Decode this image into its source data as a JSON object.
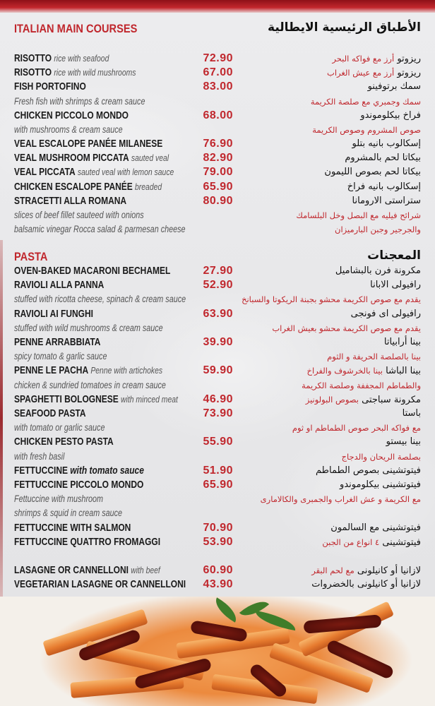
{
  "colors": {
    "accent": "#c0272d",
    "text": "#1a1a1a",
    "desc": "#555555",
    "background": "#e8e8ea"
  },
  "main_courses": {
    "title_en": "ITALIAN MAIN COURSES",
    "title_ar": "الأطباق الرئيسية الايطالية",
    "rows": [
      {
        "name": "RISOTTO",
        "desc": "rice with seafood",
        "price": "72.90",
        "ar": "ريزوتو",
        "ar_red": "أرز مع فواكه البحر"
      },
      {
        "name": "RISOTTO",
        "desc": "rice with wild mushrooms",
        "price": "67.00",
        "ar": "ريزوتو",
        "ar_red": "أرز مع عيش الغراب"
      },
      {
        "name": "FISH PORTOFINO",
        "price": "83.00",
        "ar": "سمك برتوفينو"
      },
      {
        "note": "Fresh fish with shrimps & cream sauce",
        "ar_red": "سمك وجمبري مع صلصة الكريمة"
      },
      {
        "name": "CHICKEN PICCOLO MONDO",
        "price": "68.00",
        "ar": "فراخ بيكلوموندو"
      },
      {
        "note": "with mushrooms & cream sauce",
        "ar_red": "صوص المشروم وصوص الكريمة"
      },
      {
        "name": "VEAL ESCALOPE PANÉE MILANESE",
        "price": "76.90",
        "ar": "إسكالوب بانيه بتلو"
      },
      {
        "name": "VEAL MUSHROOM PICCATA",
        "desc": "sauted veal",
        "price": "82.90",
        "ar": "بيكاتا لحم بالمشروم"
      },
      {
        "name": "VEAL PICCATA",
        "desc": "sauted veal with lemon sauce",
        "price": "79.00",
        "ar": "بيكاتا لحم بصوص الليمون"
      },
      {
        "name": "CHICKEN ESCALOPE PANÉE",
        "desc": "breaded",
        "price": "65.90",
        "ar": "إسكالوب بانيه فراخ"
      },
      {
        "name": "STRACETTI ALLA ROMANA",
        "price": "80.90",
        "ar": "ستراستى الارومانا"
      },
      {
        "note": "slices of beef fillet sauteed with onions",
        "ar_red": "شرائح فيليه مع البصل وخل البلسامك"
      },
      {
        "note": "balsamic vinegar Rocca salad & parmesan cheese",
        "ar_red": "والجرجير وجبن البارميزان"
      }
    ]
  },
  "pasta": {
    "title_en": "PASTA",
    "title_ar": "المعجنات",
    "rows": [
      {
        "name": "OVEN-BAKED MACARONI BECHAMEL",
        "price": "27.90",
        "ar": "مكرونة فرن بالبشاميل"
      },
      {
        "name": "RAVIOLI ALLA PANNA",
        "price": "52.90",
        "ar": "رافيولى الابانا"
      },
      {
        "note": "stuffed with ricotta cheese, spinach & cream sauce",
        "ar_red": "يقدم مع صوص الكريمة محشو بجبنة الريكوتا والسبانخ"
      },
      {
        "name": "RAVIOLI AI FUNGHI",
        "price": "63.90",
        "ar": "رافيولى اى فونجى"
      },
      {
        "note": "stuffed with wild mushrooms & cream sauce",
        "ar_red": "يقدم مع صوص الكريمة محشو بعيش الغراب"
      },
      {
        "name": "PENNE ARRABBIATA",
        "price": "39.90",
        "ar": "بينا أرابياتا"
      },
      {
        "note": "spicy tomato & garlic sauce",
        "ar_red": "بينا بالصلصة الحريفة و الثوم"
      },
      {
        "name": "PENNE LE PACHA",
        "desc": "Penne with artichokes",
        "price": "59.90",
        "ar": "بينا الباشا",
        "ar_red": "بينا بالخرشوف والفراخ"
      },
      {
        "note": "chicken & sundried tomatoes in cream sauce",
        "ar_red": "والطماطم المجففة وصلصة الكريمة"
      },
      {
        "name": "SPAGHETTI BOLOGNESE",
        "desc": "with minced meat",
        "price": "46.90",
        "ar": "مكرونة سباجتى",
        "ar_red": "بصوص البولونيز"
      },
      {
        "name": "SEAFOOD PASTA",
        "price": "73.90",
        "ar": "باستا"
      },
      {
        "note": "with tomato or garlic sauce",
        "ar_red": "مع فواكه البحر صوص الطماطم او ثوم"
      },
      {
        "name": "CHICKEN PESTO PASTA",
        "price": "55.90",
        "ar": "بينا بيستو"
      },
      {
        "note": "with fresh basil",
        "ar_red": "بصلصة الريحان والدجاج"
      },
      {
        "name": "FETTUCCINE",
        "desc_bold": "with tomato sauce",
        "price": "51.90",
        "ar": "فيتوتشينى بصوص الطماطم"
      },
      {
        "name": "FETTUCCINE PICCOLO MONDO",
        "price": "65.90",
        "ar": "فيتوتشينى بيكلوموندو"
      },
      {
        "note": "Fettuccine with mushroom",
        "ar_red": "مع الكريمة و عش الغراب والجمبرى والكالامارى"
      },
      {
        "note": " shrimps & squid in cream sauce"
      },
      {
        "name": "FETTUCCINE WITH SALMON",
        "price": "70.90",
        "ar": "فيتوتشينى مع السالمون"
      },
      {
        "name": "FETTUCCINE QUATTRO FROMAGGI",
        "price": "53.90",
        "ar": "فيتوتشينى",
        "ar_red": "٤ انواع من الجبن"
      }
    ],
    "rows_2": [
      {
        "name": "LASAGNE OR CANNELLONI",
        "desc": "with beef",
        "price": "60.90",
        "ar": "لازانيا أو كانيلونى",
        "ar_red": "مع لحم البقر"
      },
      {
        "name": "VEGETARIAN LASAGNE OR CANNELLONI",
        "price": "43.90",
        "ar": "لازانيا أو كانيلونى بالخضروات"
      }
    ]
  }
}
